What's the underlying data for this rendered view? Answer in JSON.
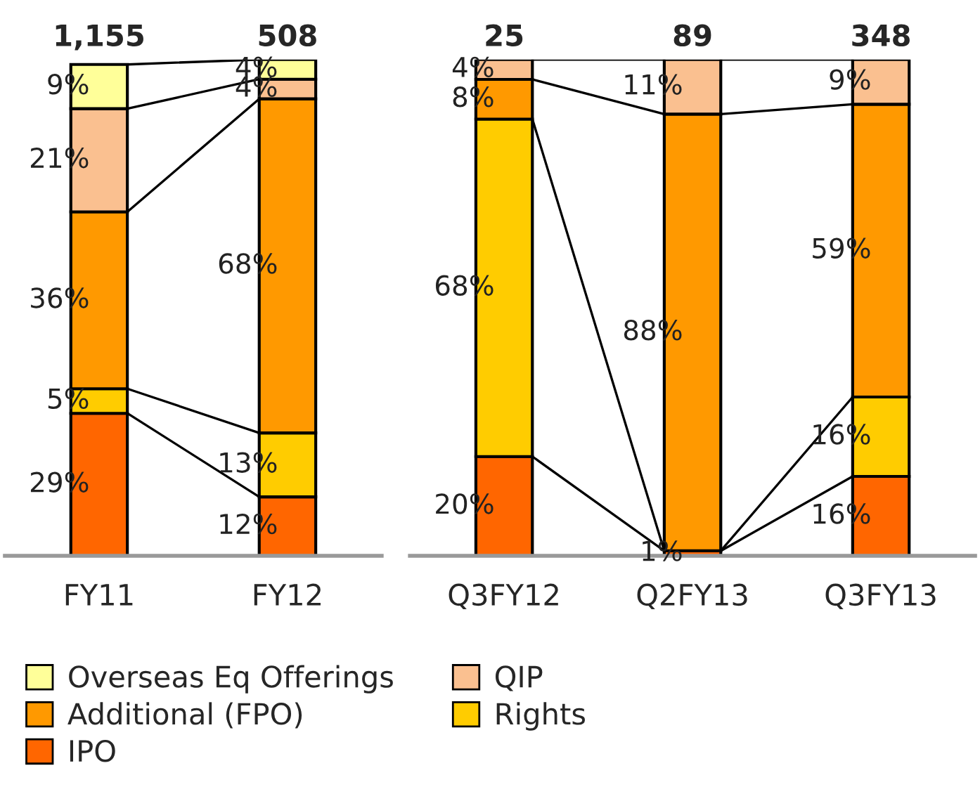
{
  "chart_data": [
    {
      "type": "bar",
      "stacked": true,
      "categories": [
        "FY11",
        "FY12"
      ],
      "annotations": [
        "1,155",
        "508"
      ],
      "legend": "bottom",
      "grid": false,
      "series": [
        {
          "name": "IPO",
          "color": "#ff6600",
          "values": [
            29,
            12
          ],
          "value_labels": [
            "29%",
            "12%"
          ]
        },
        {
          "name": "Rights",
          "color": "#ffcc00",
          "values": [
            5,
            13
          ],
          "value_labels": [
            "5%",
            "13%"
          ]
        },
        {
          "name": "Additional (FPO)",
          "color": "#ff9900",
          "values": [
            36,
            68
          ],
          "value_labels": [
            "36%",
            "68%"
          ]
        },
        {
          "name": "QIP",
          "color": "#fac090",
          "values": [
            21,
            4
          ],
          "value_labels": [
            "21%",
            "4%"
          ]
        },
        {
          "name": "Overseas Eq Offerings",
          "color": "#ffff99",
          "values": [
            9,
            4
          ],
          "value_labels": [
            "9%",
            "4%"
          ]
        }
      ]
    },
    {
      "type": "bar",
      "stacked": true,
      "categories": [
        "Q3FY12",
        "Q2FY13",
        "Q3FY13"
      ],
      "annotations": [
        "25",
        "89",
        "348"
      ],
      "grid": false,
      "series": [
        {
          "color": "#ff6600",
          "values": [
            20,
            1,
            16
          ],
          "value_labels": [
            "20%",
            "1%",
            "16%"
          ]
        },
        {
          "color": "#ffcc00",
          "values": [
            68,
            null,
            16
          ],
          "value_labels": [
            "68%",
            null,
            "16%"
          ]
        },
        {
          "color": "#ff9900",
          "values": [
            8,
            88,
            59
          ],
          "value_labels": [
            "8%",
            "88%",
            "59%"
          ]
        },
        {
          "color": "#fac090",
          "values": [
            4,
            11,
            9
          ],
          "value_labels": [
            "4%",
            "11%",
            "9%"
          ]
        }
      ]
    }
  ]
}
